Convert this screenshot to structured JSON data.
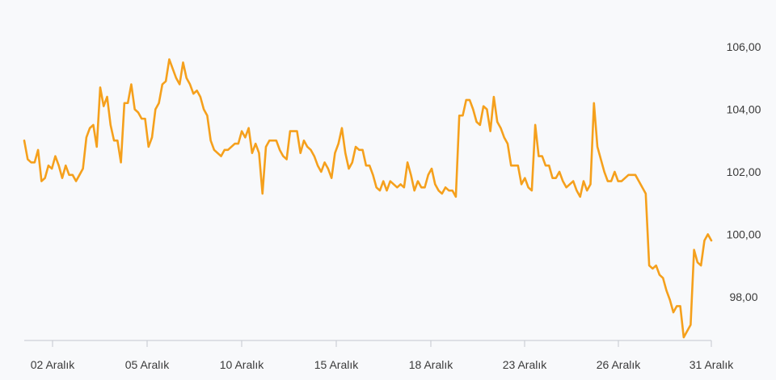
{
  "chart_data": {
    "type": "line",
    "title": "",
    "xlabel": "",
    "ylabel": "",
    "ylim": [
      96.6,
      107.5
    ],
    "grid": false,
    "legend": "none",
    "line_color": "#f5a01c",
    "axis_color": "#c4c8cf",
    "x_tick_labels": [
      "02 Aralık",
      "05 Aralık",
      "10 Aralık",
      "15 Aralık",
      "18 Aralık",
      "23 Aralık",
      "26 Aralık",
      "31 Aralık"
    ],
    "y_ticks": [
      98,
      100,
      102,
      104,
      106
    ],
    "y_tick_labels": [
      "98,00",
      "100,00",
      "102,00",
      "104,00",
      "106,00"
    ],
    "series": [
      {
        "values": [
          103.0,
          102.4,
          102.3,
          102.3,
          102.7,
          101.7,
          101.8,
          102.2,
          102.1,
          102.5,
          102.2,
          101.8,
          102.2,
          101.9,
          101.9,
          101.7,
          101.9,
          102.1,
          103.1,
          103.4,
          103.5,
          102.8,
          104.7,
          104.1,
          104.4,
          103.5,
          103.0,
          103.0,
          102.3,
          104.2,
          104.2,
          104.8,
          104.0,
          103.9,
          103.7,
          103.7,
          102.8,
          103.1,
          104.0,
          104.2,
          104.8,
          104.9,
          105.6,
          105.3,
          105.0,
          104.8,
          105.5,
          105.0,
          104.8,
          104.5,
          104.6,
          104.4,
          104.0,
          103.8,
          103.0,
          102.7,
          102.6,
          102.5,
          102.7,
          102.7,
          102.8,
          102.9,
          102.9,
          103.3,
          103.1,
          103.4,
          102.6,
          102.9,
          102.6,
          101.3,
          102.8,
          103.0,
          103.0,
          103.0,
          102.7,
          102.5,
          102.4,
          103.3,
          103.3,
          103.3,
          102.6,
          103.0,
          102.8,
          102.7,
          102.5,
          102.2,
          102.0,
          102.3,
          102.1,
          101.8,
          102.6,
          102.9,
          103.4,
          102.6,
          102.1,
          102.3,
          102.8,
          102.7,
          102.7,
          102.2,
          102.2,
          101.9,
          101.5,
          101.4,
          101.7,
          101.4,
          101.7,
          101.6,
          101.5,
          101.6,
          101.5,
          102.3,
          101.9,
          101.4,
          101.7,
          101.5,
          101.5,
          101.9,
          102.1,
          101.6,
          101.4,
          101.3,
          101.5,
          101.4,
          101.4,
          101.2,
          103.8,
          103.8,
          104.3,
          104.3,
          104.0,
          103.6,
          103.5,
          104.1,
          104.0,
          103.3,
          104.4,
          103.6,
          103.4,
          103.1,
          102.9,
          102.2,
          102.2,
          102.2,
          101.6,
          101.8,
          101.5,
          101.4,
          103.5,
          102.5,
          102.5,
          102.2,
          102.2,
          101.8,
          101.8,
          102.0,
          101.7,
          101.5,
          101.6,
          101.7,
          101.4,
          101.2,
          101.7,
          101.4,
          101.6,
          104.2,
          102.8,
          102.4,
          102.0,
          101.7,
          101.7,
          102.0,
          101.7,
          101.7,
          101.8,
          101.9,
          101.9,
          101.9,
          101.7,
          101.5,
          101.3,
          99.0,
          98.9,
          99.0,
          98.7,
          98.6,
          98.2,
          97.9,
          97.5,
          97.7,
          97.7,
          96.7,
          96.9,
          97.1,
          99.5,
          99.1,
          99.0,
          99.8,
          100.0,
          99.8
        ]
      }
    ]
  }
}
